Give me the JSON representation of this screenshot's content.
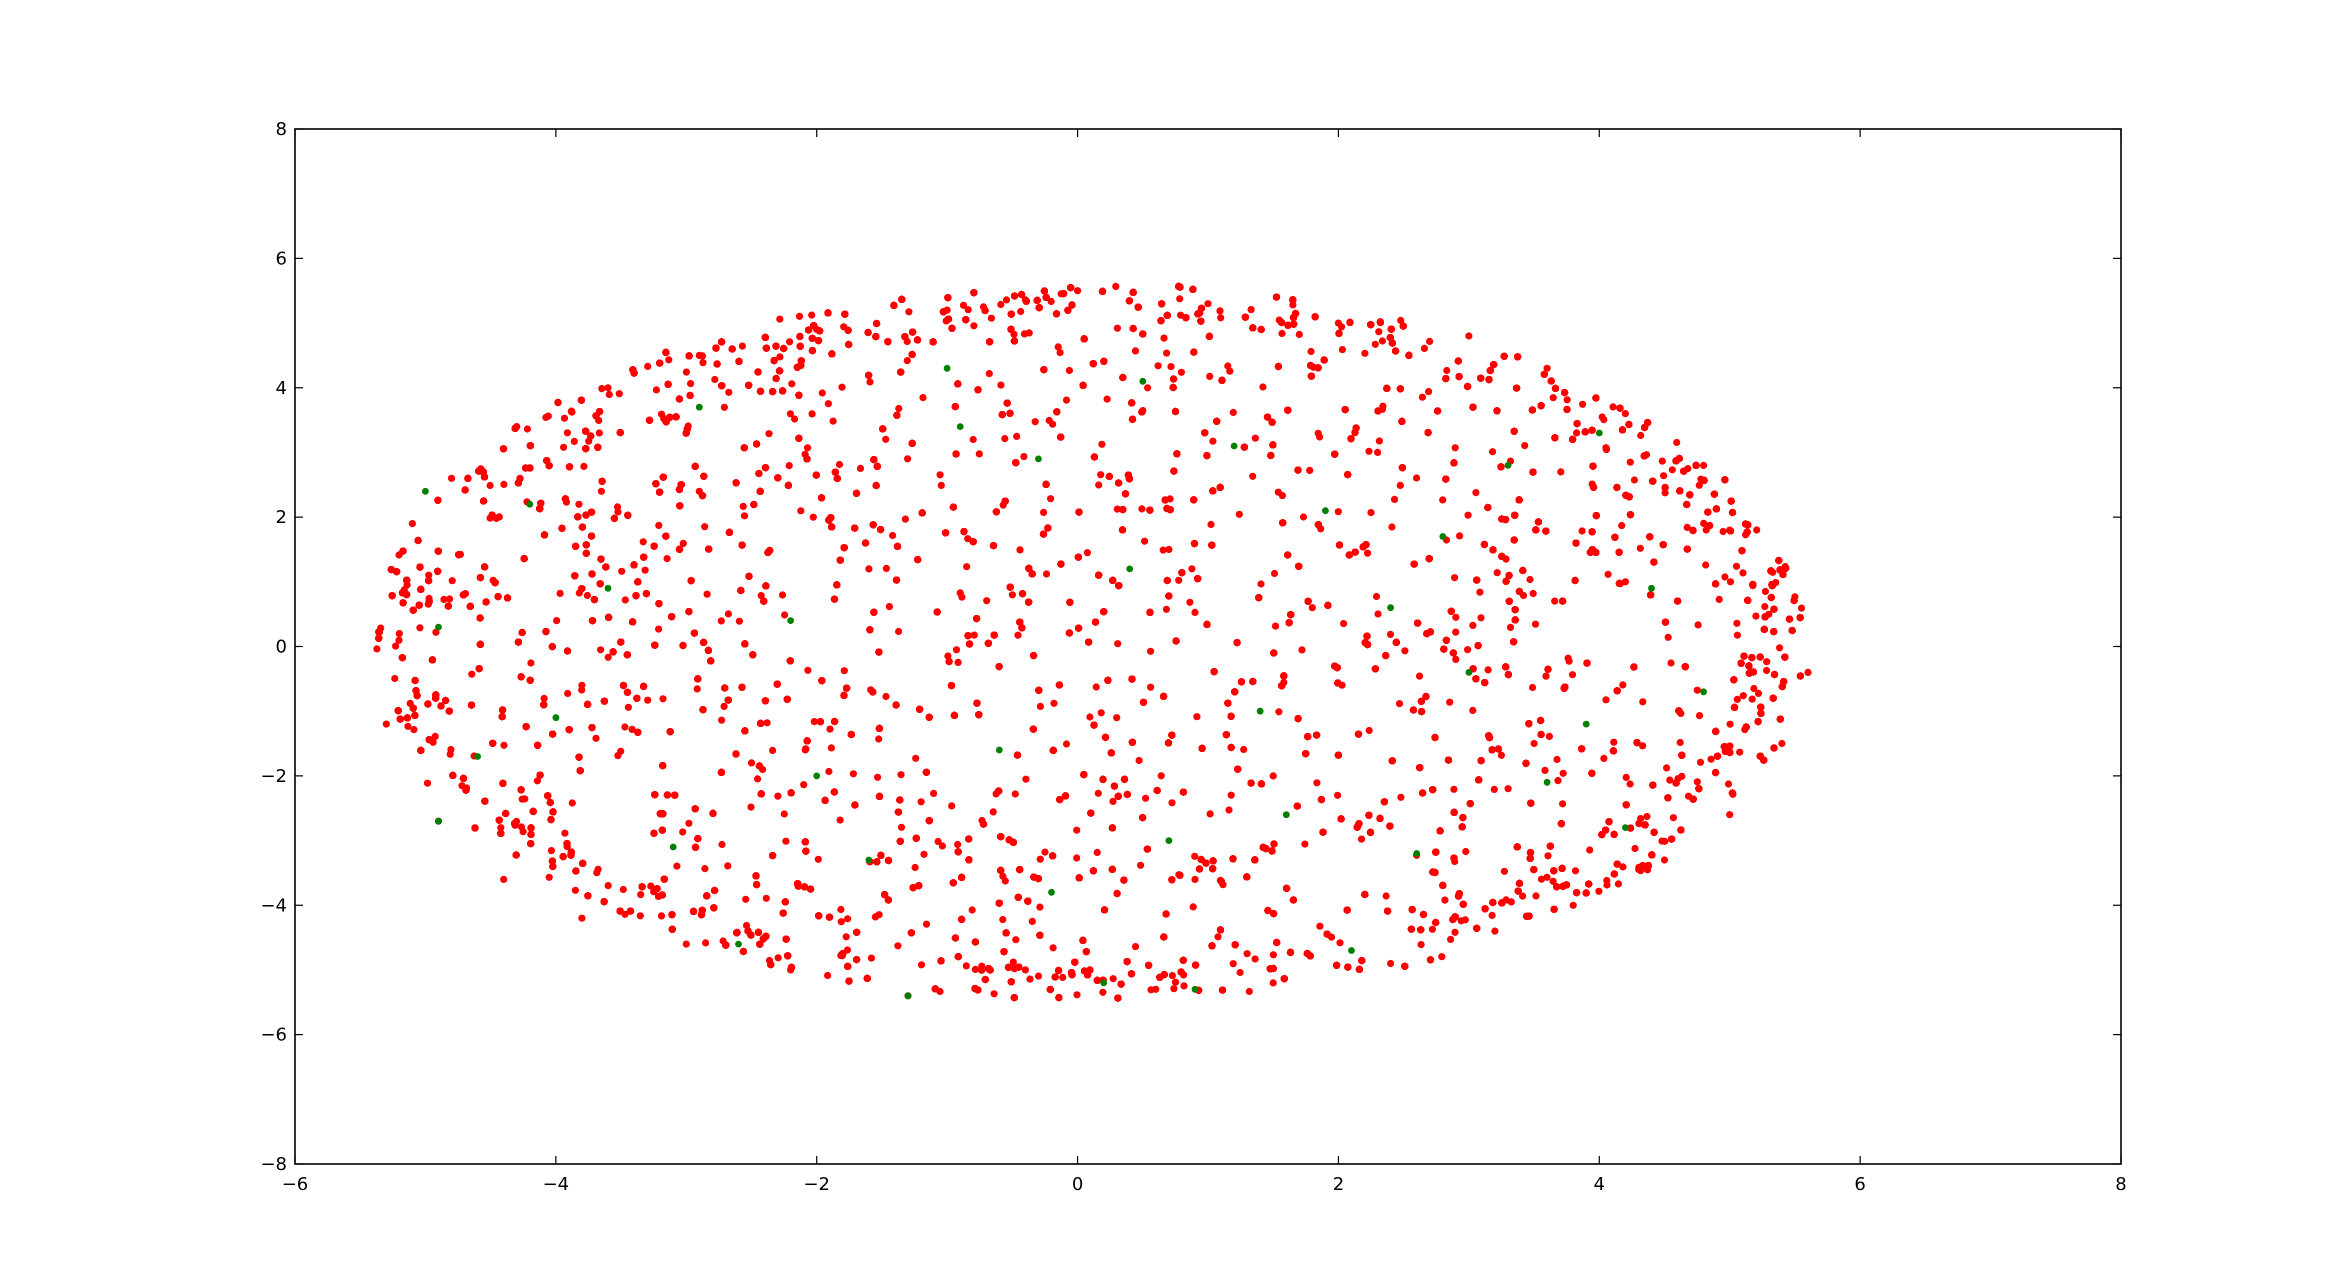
{
  "chart_data": {
    "type": "scatter",
    "title": "",
    "xlabel": "",
    "ylabel": "",
    "xlim": [
      -6,
      8
    ],
    "ylim": [
      -8,
      8
    ],
    "x_ticks": [
      -6,
      -4,
      -2,
      0,
      2,
      4,
      6,
      8
    ],
    "y_ticks": [
      -8,
      -6,
      -4,
      -2,
      0,
      2,
      4,
      6,
      8
    ],
    "x_tick_labels": [
      "−6",
      "−4",
      "−2",
      "0",
      "2",
      "4",
      "6",
      "8"
    ],
    "y_tick_labels": [
      "−8",
      "−6",
      "−4",
      "−2",
      "0",
      "2",
      "4",
      "6",
      "8"
    ],
    "grid": false,
    "legend": "none",
    "series": [
      {
        "color": "#ff0000",
        "approx_point_count": 15000,
        "extent": {
          "x": [
            -5.4,
            5.6
          ],
          "y": [
            -5.5,
            5.6
          ]
        },
        "points": [
          [
            -5.3,
            -1.2
          ],
          [
            -5.2,
            0.2
          ],
          [
            -5.1,
            1.9
          ],
          [
            -4.8,
            2.6
          ],
          [
            -4.3,
            3.4
          ],
          [
            -3.6,
            4.0
          ],
          [
            -2.9,
            4.5
          ],
          [
            -2.0,
            4.9
          ],
          [
            -1.0,
            5.2
          ],
          [
            0.0,
            5.5
          ],
          [
            1.0,
            5.3
          ],
          [
            2.0,
            5.0
          ],
          [
            3.0,
            4.8
          ],
          [
            3.6,
            4.3
          ],
          [
            4.2,
            3.6
          ],
          [
            4.8,
            2.8
          ],
          [
            5.0,
            1.8
          ],
          [
            5.3,
            0.5
          ],
          [
            5.6,
            -0.4
          ],
          [
            5.4,
            -1.5
          ],
          [
            5.0,
            -2.6
          ],
          [
            4.5,
            -3.3
          ],
          [
            3.8,
            -4.0
          ],
          [
            3.2,
            -4.4
          ],
          [
            2.4,
            -4.9
          ],
          [
            1.5,
            -5.2
          ],
          [
            0.6,
            -5.3
          ],
          [
            -0.4,
            -5.0
          ],
          [
            -1.3,
            -5.4
          ],
          [
            -2.2,
            -5.0
          ],
          [
            -3.0,
            -4.6
          ],
          [
            -3.8,
            -4.2
          ],
          [
            -4.4,
            -3.6
          ],
          [
            -4.9,
            -2.7
          ],
          [
            -1.6,
            1.2
          ],
          [
            -0.5,
            0.8
          ],
          [
            0.7,
            1.5
          ],
          [
            1.8,
            0.6
          ],
          [
            2.9,
            -0.2
          ],
          [
            -2.5,
            -1.8
          ],
          [
            -1.2,
            -2.4
          ],
          [
            0.3,
            -1.1
          ],
          [
            1.5,
            -2.0
          ],
          [
            3.5,
            -1.5
          ],
          [
            4.2,
            1.0
          ],
          [
            -3.8,
            -0.6
          ],
          [
            -0.8,
            3.2
          ],
          [
            2.3,
            3.0
          ],
          [
            -2.9,
            2.4
          ],
          [
            0.9,
            -3.6
          ]
        ]
      },
      {
        "color": "#008000",
        "approx_point_count": 300,
        "points": [
          [
            -5.0,
            2.4
          ],
          [
            -4.9,
            0.3
          ],
          [
            -4.9,
            -2.7
          ],
          [
            -4.2,
            2.2
          ],
          [
            -4.0,
            -1.1
          ],
          [
            -3.1,
            -3.1
          ],
          [
            -2.9,
            3.7
          ],
          [
            -2.6,
            -4.6
          ],
          [
            -2.0,
            -2.0
          ],
          [
            -1.6,
            -3.3
          ],
          [
            -1.3,
            -5.4
          ],
          [
            -1.0,
            4.3
          ],
          [
            -0.9,
            3.4
          ],
          [
            -0.6,
            -1.6
          ],
          [
            -0.3,
            2.9
          ],
          [
            0.2,
            -5.2
          ],
          [
            0.4,
            1.2
          ],
          [
            0.7,
            -3.0
          ],
          [
            0.9,
            -5.3
          ],
          [
            1.2,
            3.1
          ],
          [
            1.4,
            -1.0
          ],
          [
            1.9,
            2.1
          ],
          [
            2.1,
            -4.7
          ],
          [
            2.4,
            0.6
          ],
          [
            2.6,
            -3.2
          ],
          [
            3.0,
            -0.4
          ],
          [
            3.3,
            2.8
          ],
          [
            3.6,
            -2.1
          ],
          [
            4.0,
            3.3
          ],
          [
            4.2,
            -2.8
          ],
          [
            4.4,
            0.9
          ],
          [
            4.8,
            -0.7
          ],
          [
            -3.6,
            0.9
          ],
          [
            -2.2,
            0.4
          ],
          [
            -0.2,
            -3.8
          ],
          [
            1.6,
            -2.6
          ],
          [
            2.8,
            1.7
          ],
          [
            3.9,
            -1.2
          ],
          [
            -4.6,
            -1.7
          ],
          [
            0.5,
            4.1
          ]
        ]
      }
    ]
  }
}
